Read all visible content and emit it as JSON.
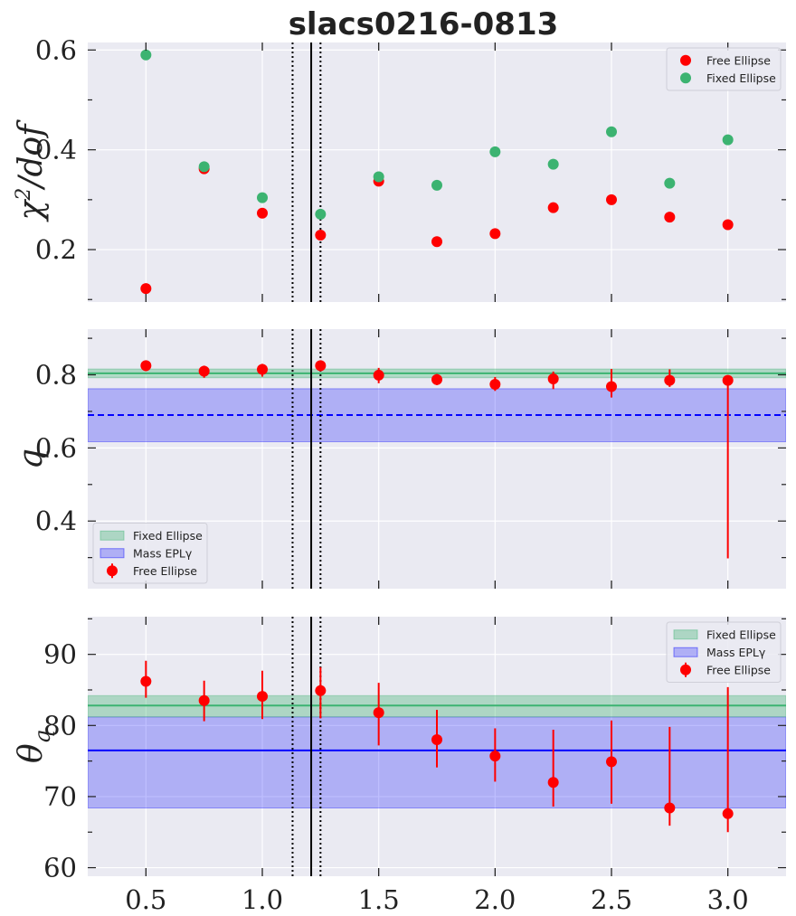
{
  "chart_data": {
    "type": "scatter",
    "title": "slacs0216-0813",
    "xlim": [
      0.25,
      3.25
    ],
    "xticks": [
      0.5,
      1.0,
      1.5,
      2.0,
      2.5,
      3.0
    ],
    "xtick_labels": [
      "0.5",
      "1.0",
      "1.5",
      "2.0",
      "2.5",
      "3.0"
    ],
    "vlines": {
      "solid": 1.21,
      "dotted": [
        1.13,
        1.25
      ]
    },
    "panels": [
      {
        "id": "chi2",
        "ylabel": "χ²/dof",
        "ylabel_base": "χ",
        "ylabel_sup": "2",
        "ylabel_rest": "/dof",
        "ylim": [
          0.095,
          0.615
        ],
        "yticks": [
          0.2,
          0.4,
          0.6
        ],
        "ytick_labels": [
          "0.2",
          "0.4",
          "0.6"
        ],
        "legend_loc": "top-right",
        "series": [
          {
            "name": "Free Ellipse",
            "color": "#ff0000",
            "x": [
              0.5,
              0.75,
              1.0,
              1.25,
              1.5,
              1.75,
              2.0,
              2.25,
              2.5,
              2.75,
              3.0
            ],
            "y": [
              0.122,
              0.362,
              0.273,
              0.229,
              0.337,
              0.216,
              0.232,
              0.284,
              0.3,
              0.265,
              0.25
            ]
          },
          {
            "name": "Fixed Ellipse",
            "color": "#3cb371",
            "x": [
              0.5,
              0.75,
              1.0,
              1.25,
              1.5,
              1.75,
              2.0,
              2.25,
              2.5,
              2.75,
              3.0
            ],
            "y": [
              0.59,
              0.366,
              0.304,
              0.271,
              0.346,
              0.329,
              0.396,
              0.371,
              0.436,
              0.333,
              0.42
            ]
          }
        ]
      },
      {
        "id": "q",
        "ylabel": "q",
        "ylim": [
          0.215,
          0.925
        ],
        "yticks": [
          0.4,
          0.6,
          0.8
        ],
        "ytick_labels": [
          "0.4",
          "0.6",
          "0.8"
        ],
        "legend_loc": "bottom-left",
        "bands": [
          {
            "name": "Fixed Ellipse",
            "color": "#3cb371",
            "low": 0.792,
            "high": 0.816,
            "center": 0.804,
            "line": "solid"
          },
          {
            "name": "Mass EPLγ",
            "color": "#0000ff",
            "low": 0.617,
            "high": 0.762,
            "center": 0.69,
            "line": "dashed"
          }
        ],
        "series": [
          {
            "name": "Free Ellipse",
            "color": "#ff0000",
            "x": [
              0.5,
              0.75,
              1.0,
              1.25,
              1.5,
              1.75,
              2.0,
              2.25,
              2.5,
              2.75,
              3.0
            ],
            "y": [
              0.825,
              0.81,
              0.815,
              0.825,
              0.799,
              0.787,
              0.774,
              0.789,
              0.768,
              0.785,
              0.785
            ],
            "err_low": [
              0.015,
              0.018,
              0.02,
              0.015,
              0.022,
              0.015,
              0.018,
              0.028,
              0.03,
              0.018,
              0.487
            ],
            "err_high": [
              0.013,
              0.015,
              0.015,
              0.01,
              0.02,
              0.015,
              0.02,
              0.02,
              0.048,
              0.03,
              0.005
            ]
          }
        ]
      },
      {
        "id": "theta",
        "ylabel": "θq",
        "ylabel_base": "θ",
        "ylabel_sub": "q",
        "ylim": [
          58.8,
          95.3
        ],
        "yticks": [
          60,
          70,
          80,
          90
        ],
        "ytick_labels": [
          "60",
          "70",
          "80",
          "90"
        ],
        "legend_loc": "top-right",
        "bands": [
          {
            "name": "Fixed Ellipse",
            "color": "#3cb371",
            "low": 81.2,
            "high": 84.2,
            "center": 82.8,
            "line": "solid"
          },
          {
            "name": "Mass EPLγ",
            "color": "#0000ff",
            "low": 68.4,
            "high": 81.2,
            "center": 76.5,
            "line": "solid"
          }
        ],
        "series": [
          {
            "name": "Free Ellipse",
            "color": "#ff0000",
            "x": [
              0.5,
              0.75,
              1.0,
              1.25,
              1.5,
              1.75,
              2.0,
              2.25,
              2.5,
              2.75,
              3.0
            ],
            "y": [
              86.2,
              83.5,
              84.1,
              84.9,
              81.8,
              78.0,
              75.7,
              72.0,
              74.9,
              68.4,
              67.6
            ],
            "err_low": [
              2.3,
              2.9,
              3.2,
              3.9,
              4.6,
              3.9,
              3.6,
              3.4,
              5.9,
              2.5,
              2.6
            ],
            "err_high": [
              2.9,
              2.8,
              3.6,
              3.3,
              4.2,
              4.2,
              3.9,
              7.4,
              5.8,
              11.4,
              17.8
            ]
          }
        ]
      }
    ]
  }
}
